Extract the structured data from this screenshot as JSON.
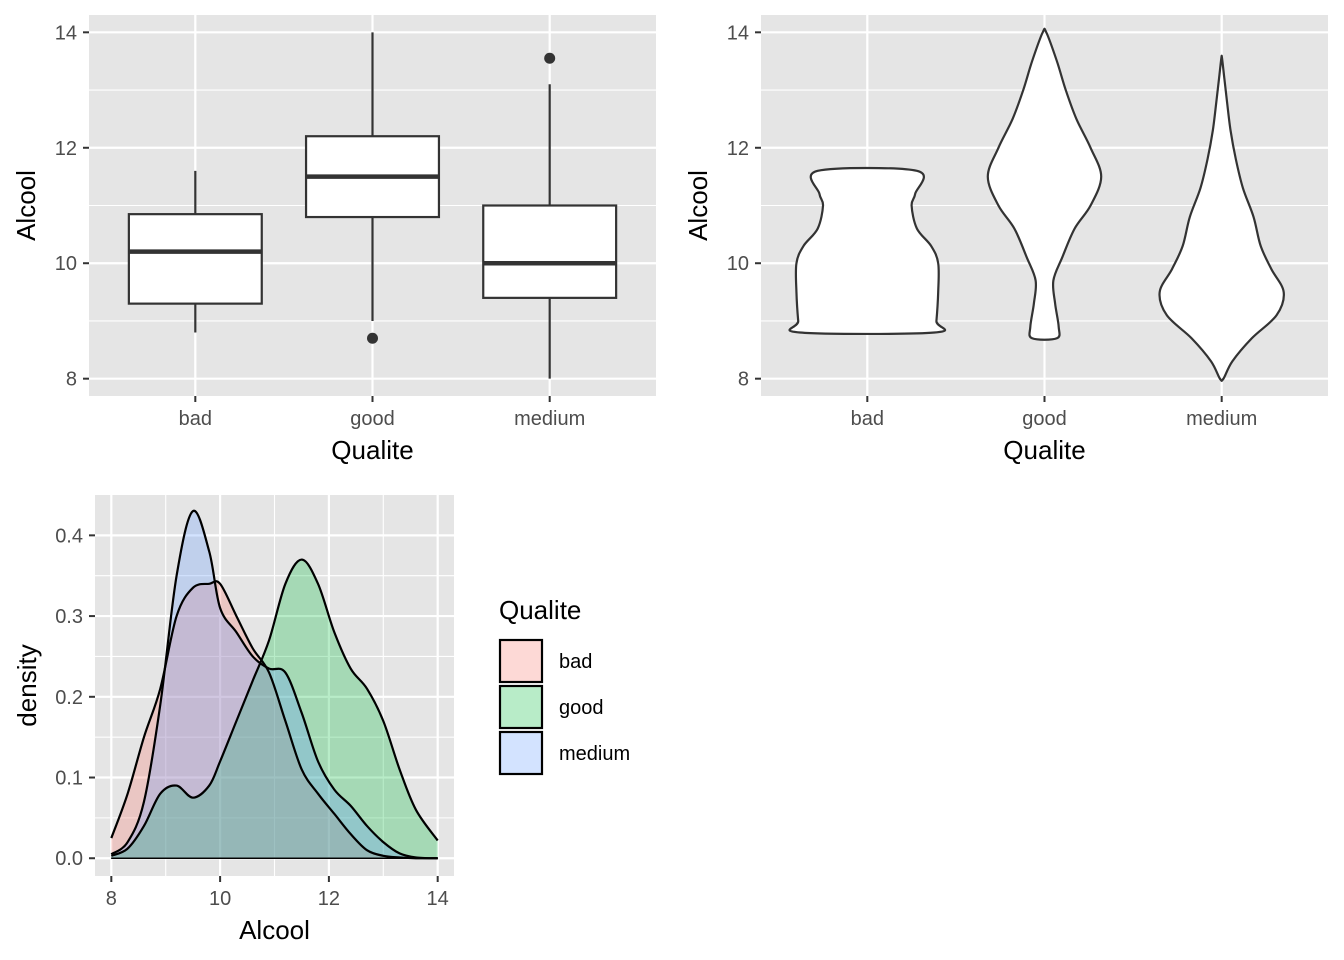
{
  "chart_data": [
    {
      "type": "box",
      "xlabel": "Qualite",
      "ylabel": "Alcool",
      "categories": [
        "bad",
        "good",
        "medium"
      ],
      "ylim": [
        7.7,
        14.3
      ],
      "yticks": [
        8,
        10,
        12,
        14
      ],
      "ytick_labels": [
        "8",
        "10",
        "12",
        "14"
      ],
      "grid": true,
      "boxes": [
        {
          "category": "bad",
          "whisker_low": 8.8,
          "q1": 9.3,
          "median": 10.2,
          "q3": 10.85,
          "whisker_high": 11.6,
          "outliers": []
        },
        {
          "category": "good",
          "whisker_low": 9.0,
          "q1": 10.8,
          "median": 11.5,
          "q3": 12.2,
          "whisker_high": 14.0,
          "outliers": [
            8.7
          ]
        },
        {
          "category": "medium",
          "whisker_low": 8.0,
          "q1": 9.4,
          "median": 10.0,
          "q3": 11.0,
          "whisker_high": 13.1,
          "outliers": [
            13.55
          ]
        }
      ]
    },
    {
      "type": "violin",
      "xlabel": "Qualite",
      "ylabel": "Alcool",
      "categories": [
        "bad",
        "good",
        "medium"
      ],
      "ylim": [
        7.7,
        14.3
      ],
      "yticks": [
        8,
        10,
        12,
        14
      ],
      "ytick_labels": [
        "8",
        "10",
        "12",
        "14"
      ],
      "grid": true,
      "violins": [
        {
          "category": "bad",
          "y": [
            8.8,
            9.0,
            9.5,
            10.0,
            10.3,
            10.6,
            11.0,
            11.2,
            11.6
          ],
          "width": [
            0.38,
            0.39,
            0.4,
            0.4,
            0.36,
            0.28,
            0.25,
            0.27,
            0.28
          ]
        },
        {
          "category": "good",
          "y": [
            8.7,
            8.9,
            9.3,
            9.7,
            10.1,
            10.6,
            11.0,
            11.5,
            12.0,
            12.5,
            13.0,
            13.5,
            14.0
          ],
          "width": [
            0.07,
            0.08,
            0.06,
            0.05,
            0.1,
            0.17,
            0.26,
            0.32,
            0.26,
            0.18,
            0.12,
            0.07,
            0.01
          ]
        },
        {
          "category": "medium",
          "y": [
            8.0,
            8.3,
            8.7,
            9.1,
            9.5,
            9.9,
            10.3,
            10.8,
            11.3,
            11.8,
            12.3,
            12.8,
            13.2,
            13.55
          ],
          "width": [
            0.01,
            0.06,
            0.17,
            0.31,
            0.35,
            0.28,
            0.22,
            0.18,
            0.12,
            0.08,
            0.05,
            0.03,
            0.015,
            0.002
          ]
        }
      ]
    },
    {
      "type": "area",
      "xlabel": "Alcool",
      "ylabel": "density",
      "xlim": [
        7.7,
        14.3
      ],
      "ylim": [
        -0.022,
        0.45
      ],
      "xticks": [
        8,
        10,
        12,
        14
      ],
      "xtick_labels": [
        "8",
        "10",
        "12",
        "14"
      ],
      "yticks": [
        0.0,
        0.1,
        0.2,
        0.3,
        0.4
      ],
      "ytick_labels": [
        "0.0",
        "0.1",
        "0.2",
        "0.3",
        "0.4"
      ],
      "grid": true,
      "legend": {
        "title": "Qualite",
        "position": "right"
      },
      "series": [
        {
          "name": "bad",
          "color": "#F8766D",
          "x": [
            8.0,
            8.3,
            8.6,
            8.9,
            9.2,
            9.5,
            9.8,
            10.0,
            10.3,
            10.6,
            10.9,
            11.2,
            11.5,
            11.8,
            12.1,
            12.4,
            12.7,
            13.0,
            13.3,
            13.6,
            14.0
          ],
          "y": [
            0.025,
            0.08,
            0.15,
            0.21,
            0.3,
            0.335,
            0.34,
            0.34,
            0.3,
            0.26,
            0.23,
            0.17,
            0.11,
            0.08,
            0.055,
            0.03,
            0.01,
            0.003,
            0.001,
            0.0,
            0.0
          ]
        },
        {
          "name": "good",
          "color": "#00BA38",
          "x": [
            8.0,
            8.3,
            8.6,
            8.9,
            9.2,
            9.5,
            9.8,
            10.0,
            10.3,
            10.6,
            10.9,
            11.2,
            11.5,
            11.8,
            12.1,
            12.4,
            12.7,
            13.0,
            13.3,
            13.6,
            14.0
          ],
          "y": [
            0.003,
            0.012,
            0.04,
            0.08,
            0.09,
            0.075,
            0.09,
            0.12,
            0.17,
            0.22,
            0.27,
            0.34,
            0.37,
            0.34,
            0.28,
            0.235,
            0.21,
            0.17,
            0.11,
            0.06,
            0.022
          ]
        },
        {
          "name": "medium",
          "color": "#619CFF",
          "x": [
            8.0,
            8.3,
            8.6,
            8.9,
            9.2,
            9.5,
            9.8,
            10.0,
            10.3,
            10.6,
            10.9,
            11.2,
            11.5,
            11.8,
            12.1,
            12.4,
            12.7,
            13.0,
            13.3,
            13.6,
            14.0
          ],
          "y": [
            0.005,
            0.02,
            0.07,
            0.19,
            0.35,
            0.43,
            0.38,
            0.31,
            0.28,
            0.25,
            0.235,
            0.23,
            0.18,
            0.12,
            0.085,
            0.065,
            0.04,
            0.02,
            0.006,
            0.001,
            0.0
          ]
        }
      ]
    }
  ]
}
